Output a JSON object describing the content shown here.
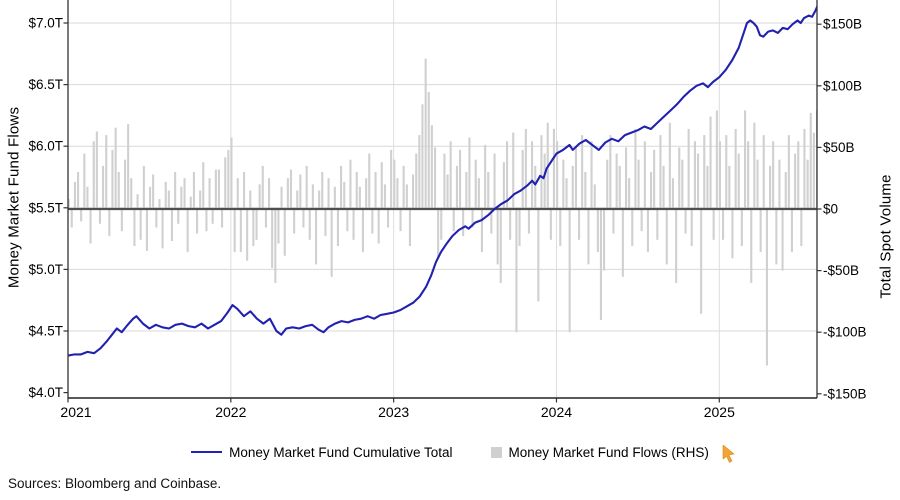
{
  "figure": {
    "sources_note": "Sources: Bloomberg and Coinbase."
  },
  "chart_data": {
    "type": "line+bar",
    "title": "",
    "grid": true,
    "left_axis": {
      "label": "Money Market Fund Flows",
      "unit": "trillions USD",
      "tick_labels": [
        "$7.0T",
        "$6.5T",
        "$6.0T",
        "$5.5T",
        "$5.0T",
        "$4.5T",
        "$4.0T"
      ],
      "tick_values": [
        7.0,
        6.5,
        6.0,
        5.5,
        5.0,
        4.5,
        4.0
      ],
      "range": [
        4.0,
        7.19
      ]
    },
    "right_axis": {
      "label": "Total Spot Volume",
      "unit": "billions USD",
      "tick_labels": [
        "$150B",
        "$100B",
        "$50B",
        "$0",
        "-$50B",
        "-$100B",
        "-$150B"
      ],
      "tick_values": [
        150,
        100,
        50,
        0,
        -50,
        -100,
        -150
      ],
      "range": [
        -150,
        157
      ]
    },
    "x_axis": {
      "tick_labels": [
        "2021",
        "2022",
        "2023",
        "2024",
        "2025"
      ],
      "tick_values": [
        0,
        1,
        2,
        3,
        4
      ]
    },
    "legend": [
      {
        "label": "Money Market Fund Cumulative Total",
        "type": "line",
        "color": "#2222b8"
      },
      {
        "label": "Money Market Fund Flows (RHS)",
        "type": "bar",
        "color": "#d0d0d0"
      }
    ],
    "line_series": {
      "name": "Money Market Fund Cumulative Total",
      "color": "#2121b0",
      "axis": "left",
      "x_unit": "years since 2021-01",
      "points": [
        [
          0.0,
          4.3
        ],
        [
          0.04,
          4.31
        ],
        [
          0.08,
          4.31
        ],
        [
          0.12,
          4.33
        ],
        [
          0.16,
          4.32
        ],
        [
          0.2,
          4.36
        ],
        [
          0.24,
          4.42
        ],
        [
          0.27,
          4.47
        ],
        [
          0.3,
          4.52
        ],
        [
          0.33,
          4.49
        ],
        [
          0.36,
          4.54
        ],
        [
          0.4,
          4.6
        ],
        [
          0.42,
          4.62
        ],
        [
          0.46,
          4.56
        ],
        [
          0.5,
          4.52
        ],
        [
          0.54,
          4.55
        ],
        [
          0.58,
          4.53
        ],
        [
          0.62,
          4.52
        ],
        [
          0.66,
          4.55
        ],
        [
          0.7,
          4.56
        ],
        [
          0.74,
          4.54
        ],
        [
          0.78,
          4.53
        ],
        [
          0.82,
          4.56
        ],
        [
          0.86,
          4.52
        ],
        [
          0.9,
          4.55
        ],
        [
          0.94,
          4.58
        ],
        [
          0.98,
          4.65
        ],
        [
          1.01,
          4.71
        ],
        [
          1.04,
          4.68
        ],
        [
          1.08,
          4.62
        ],
        [
          1.12,
          4.66
        ],
        [
          1.16,
          4.6
        ],
        [
          1.2,
          4.56
        ],
        [
          1.24,
          4.6
        ],
        [
          1.28,
          4.5
        ],
        [
          1.31,
          4.47
        ],
        [
          1.34,
          4.52
        ],
        [
          1.38,
          4.53
        ],
        [
          1.42,
          4.52
        ],
        [
          1.46,
          4.54
        ],
        [
          1.5,
          4.55
        ],
        [
          1.54,
          4.51
        ],
        [
          1.57,
          4.49
        ],
        [
          1.6,
          4.53
        ],
        [
          1.64,
          4.56
        ],
        [
          1.68,
          4.58
        ],
        [
          1.72,
          4.57
        ],
        [
          1.76,
          4.59
        ],
        [
          1.8,
          4.6
        ],
        [
          1.84,
          4.62
        ],
        [
          1.88,
          4.6
        ],
        [
          1.92,
          4.63
        ],
        [
          1.96,
          4.64
        ],
        [
          2.0,
          4.65
        ],
        [
          2.04,
          4.67
        ],
        [
          2.08,
          4.7
        ],
        [
          2.12,
          4.73
        ],
        [
          2.16,
          4.78
        ],
        [
          2.2,
          4.86
        ],
        [
          2.23,
          4.95
        ],
        [
          2.26,
          5.06
        ],
        [
          2.29,
          5.14
        ],
        [
          2.32,
          5.2
        ],
        [
          2.36,
          5.27
        ],
        [
          2.4,
          5.32
        ],
        [
          2.44,
          5.35
        ],
        [
          2.46,
          5.33
        ],
        [
          2.5,
          5.38
        ],
        [
          2.54,
          5.4
        ],
        [
          2.58,
          5.44
        ],
        [
          2.62,
          5.49
        ],
        [
          2.66,
          5.53
        ],
        [
          2.7,
          5.56
        ],
        [
          2.74,
          5.61
        ],
        [
          2.78,
          5.64
        ],
        [
          2.82,
          5.68
        ],
        [
          2.85,
          5.72
        ],
        [
          2.87,
          5.69
        ],
        [
          2.9,
          5.76
        ],
        [
          2.92,
          5.74
        ],
        [
          2.94,
          5.82
        ],
        [
          2.98,
          5.9
        ],
        [
          3.0,
          5.94
        ],
        [
          3.04,
          5.97
        ],
        [
          3.08,
          6.01
        ],
        [
          3.1,
          5.97
        ],
        [
          3.14,
          6.02
        ],
        [
          3.18,
          6.05
        ],
        [
          3.22,
          6.01
        ],
        [
          3.26,
          5.97
        ],
        [
          3.3,
          6.03
        ],
        [
          3.34,
          6.06
        ],
        [
          3.38,
          6.04
        ],
        [
          3.42,
          6.09
        ],
        [
          3.46,
          6.11
        ],
        [
          3.5,
          6.13
        ],
        [
          3.54,
          6.16
        ],
        [
          3.58,
          6.14
        ],
        [
          3.62,
          6.19
        ],
        [
          3.66,
          6.24
        ],
        [
          3.7,
          6.29
        ],
        [
          3.74,
          6.34
        ],
        [
          3.78,
          6.4
        ],
        [
          3.82,
          6.45
        ],
        [
          3.86,
          6.49
        ],
        [
          3.9,
          6.51
        ],
        [
          3.93,
          6.48
        ],
        [
          3.96,
          6.52
        ],
        [
          4.0,
          6.56
        ],
        [
          4.04,
          6.62
        ],
        [
          4.08,
          6.7
        ],
        [
          4.12,
          6.8
        ],
        [
          4.15,
          6.92
        ],
        [
          4.17,
          7.0
        ],
        [
          4.19,
          7.02
        ],
        [
          4.21,
          7.0
        ],
        [
          4.23,
          6.97
        ],
        [
          4.25,
          6.9
        ],
        [
          4.27,
          6.89
        ],
        [
          4.3,
          6.93
        ],
        [
          4.33,
          6.94
        ],
        [
          4.36,
          6.92
        ],
        [
          4.39,
          6.96
        ],
        [
          4.42,
          6.95
        ],
        [
          4.45,
          6.99
        ],
        [
          4.48,
          7.02
        ],
        [
          4.5,
          7.0
        ],
        [
          4.52,
          7.04
        ],
        [
          4.55,
          7.06
        ],
        [
          4.57,
          7.05
        ],
        [
          4.59,
          7.1
        ],
        [
          4.6,
          7.13
        ]
      ]
    },
    "bar_series": {
      "name": "Money Market Fund Flows (RHS)",
      "color": "#d0d0d0",
      "axis": "right",
      "cadence": "weekly",
      "start": "2021-01",
      "values_billions": [
        8,
        -15,
        22,
        30,
        -10,
        45,
        18,
        -28,
        55,
        63,
        -12,
        35,
        60,
        -22,
        48,
        66,
        30,
        -18,
        40,
        69,
        25,
        -30,
        12,
        -25,
        35,
        -34,
        18,
        28,
        -15,
        8,
        -32,
        22,
        15,
        -26,
        30,
        -12,
        18,
        25,
        -35,
        10,
        30,
        -20,
        15,
        38,
        -18,
        25,
        -12,
        32,
        32,
        -15,
        42,
        48,
        58,
        -35,
        25,
        -35,
        30,
        -42,
        15,
        -30,
        -25,
        20,
        35,
        -15,
        25,
        -48,
        -60,
        -28,
        18,
        -38,
        25,
        32,
        -20,
        15,
        28,
        -15,
        35,
        -25,
        20,
        -45,
        15,
        30,
        -22,
        25,
        -55,
        18,
        -30,
        35,
        22,
        -18,
        40,
        -25,
        30,
        18,
        -35,
        25,
        45,
        -20,
        30,
        -28,
        38,
        20,
        -15,
        48,
        40,
        25,
        -18,
        35,
        20,
        -30,
        28,
        45,
        60,
        85,
        122,
        95,
        68,
        50,
        -40,
        -25,
        45,
        28,
        55,
        -18,
        35,
        48,
        -22,
        30,
        58,
        -15,
        40,
        25,
        -35,
        52,
        30,
        -20,
        45,
        -45,
        -60,
        38,
        55,
        -25,
        62,
        -100,
        -30,
        48,
        65,
        -20,
        55,
        35,
        -75,
        60,
        45,
        70,
        -25,
        65,
        55,
        -30,
        40,
        25,
        -100,
        35,
        50,
        -25,
        60,
        30,
        -45,
        55,
        20,
        -35,
        -90,
        -50,
        40,
        60,
        -20,
        45,
        35,
        -55,
        50,
        25,
        -30,
        65,
        40,
        -18,
        55,
        -35,
        30,
        48,
        -25,
        60,
        35,
        -45,
        70,
        25,
        -60,
        50,
        40,
        -20,
        65,
        -30,
        55,
        45,
        -85,
        60,
        35,
        75,
        -25,
        80,
        55,
        -25,
        60,
        35,
        -40,
        65,
        45,
        -30,
        80,
        55,
        -60,
        70,
        40,
        -35,
        60,
        -127,
        35,
        55,
        -45,
        40,
        -50,
        30,
        60,
        -35,
        45,
        55,
        -30,
        65,
        40,
        78,
        62,
        80
      ]
    },
    "zero_line_value": 0,
    "legend_position": "bottom-center"
  },
  "icons": {
    "cursor_color": "#f2a33a"
  }
}
